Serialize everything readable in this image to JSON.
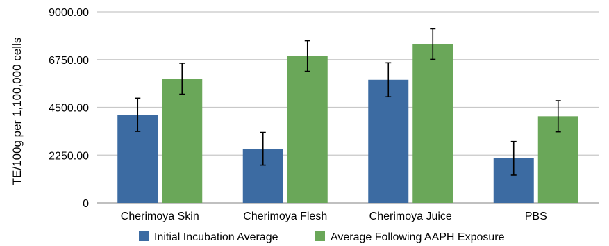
{
  "chart_data": {
    "type": "bar",
    "title": "",
    "xlabel": "",
    "ylabel": "TE/100g per 1,100,000 cells",
    "categories": [
      "Cherimoya Skin",
      "Cherimoya Flesh",
      "Cherimoya Juice",
      "PBS"
    ],
    "y_ticks": [
      "0",
      "2250.00",
      "4500.00",
      "6750.00",
      "9000.00"
    ],
    "ylim": [
      0,
      9000
    ],
    "grid": true,
    "legend": "bottom",
    "series": [
      {
        "name": "Initial Incubation Average",
        "color": "#3c6ba2",
        "values": [
          4150,
          2550,
          5800,
          2100
        ],
        "errors": [
          780,
          770,
          800,
          790
        ]
      },
      {
        "name": "Average Following AAPH Exposure",
        "color": "#6aa759",
        "values": [
          5850,
          6920,
          7480,
          4080
        ],
        "errors": [
          730,
          720,
          720,
          730
        ]
      }
    ]
  }
}
